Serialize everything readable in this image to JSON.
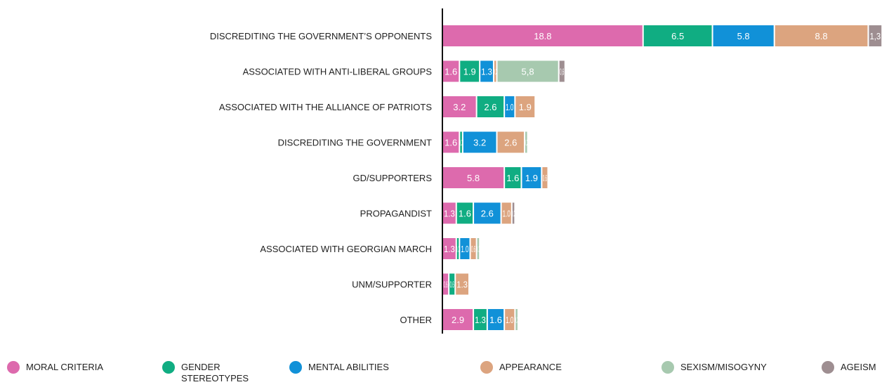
{
  "chart_data": {
    "type": "bar",
    "orientation": "horizontal",
    "stacked": true,
    "categories": [
      "DISCREDITING THE GOVERNMENT’S OPPONENTS",
      "ASSOCIATED WITH ANTI-LIBERAL GROUPS",
      "ASSOCIATED WITH THE ALLIANCE OF PATRIOTS",
      "DISCREDITING THE GOVERNMENT",
      "GD/SUPPORTERS",
      "PROPAGANDIST",
      "ASSOCIATED WITH GEORGIAN MARCH",
      "UNM/SUPPORTER",
      "OTHER"
    ],
    "series": [
      {
        "name": "MORAL CRITERIA",
        "color": "#DD6AAD",
        "values": [
          18.8,
          1.6,
          3.2,
          1.6,
          5.8,
          1.3,
          1.3,
          0.6,
          2.9
        ],
        "labels": [
          "18.8",
          "1.6",
          "3.2",
          "1.6",
          "5.8",
          "1.3",
          "1.3",
          "0.6",
          "2.9"
        ]
      },
      {
        "name": "GENDER STEREOTYPES",
        "color": "#10AD82",
        "values": [
          6.5,
          1.9,
          2.6,
          0.3,
          1.6,
          1.6,
          0.3,
          0.6,
          1.3
        ],
        "labels": [
          "6.5",
          "1.9",
          "2.6",
          "0.3",
          "1.6",
          "1.6",
          "0.3",
          "0.6",
          "1.3"
        ]
      },
      {
        "name": "MENTAL ABILITIES",
        "color": "#1191D8",
        "values": [
          5.8,
          1.3,
          1.0,
          3.2,
          1.9,
          2.6,
          1.0,
          0,
          1.6
        ],
        "labels": [
          "5.8",
          "1.3",
          "1.0",
          "3.2",
          "1.9",
          "2.6",
          "1.0",
          "",
          "1.6"
        ]
      },
      {
        "name": "APPEARANCE",
        "color": "#DCA47F",
        "values": [
          8.8,
          0.3,
          1.9,
          2.6,
          0.6,
          1.0,
          0.6,
          1.3,
          1.0
        ],
        "labels": [
          "8.8",
          "0.3",
          "1.9",
          "2.6",
          "0.6",
          "1.0",
          "0.6",
          "1.3",
          "1.0"
        ]
      },
      {
        "name": "SEXISM/MISOGYNY",
        "color": "#A7C9AF",
        "values": [
          0,
          5.8,
          0,
          0.3,
          0,
          0,
          0.3,
          0,
          0.3
        ],
        "labels": [
          "",
          "5,8",
          "",
          "0.3",
          "",
          "",
          "0.3",
          "",
          "0.3"
        ]
      },
      {
        "name": "AGEISM",
        "color": "#9E8E91",
        "values": [
          1.3,
          0.6,
          0,
          0,
          0,
          0.3,
          0,
          0,
          0
        ],
        "labels": [
          "1,3",
          "0,6",
          "",
          "",
          "",
          "0.3",
          "",
          "",
          ""
        ]
      }
    ],
    "grid": false,
    "legend_position": "bottom"
  },
  "legend": {
    "items": [
      {
        "label": "MORAL CRITERIA",
        "color": "#DD6AAD",
        "icon": "circle"
      },
      {
        "label": "GENDER STEREOTYPES",
        "color": "#10AD82",
        "icon": "circle"
      },
      {
        "label": "MENTAL ABILITIES",
        "color": "#1191D8",
        "icon": "circle"
      },
      {
        "label": "APPEARANCE",
        "color": "#DCA47F",
        "icon": "circle"
      },
      {
        "label": "SEXISM/MISOGYNY",
        "color": "#A7C9AF",
        "icon": "circle"
      },
      {
        "label": "AGEISM",
        "color": "#9E8E91",
        "icon": "circle"
      }
    ]
  }
}
